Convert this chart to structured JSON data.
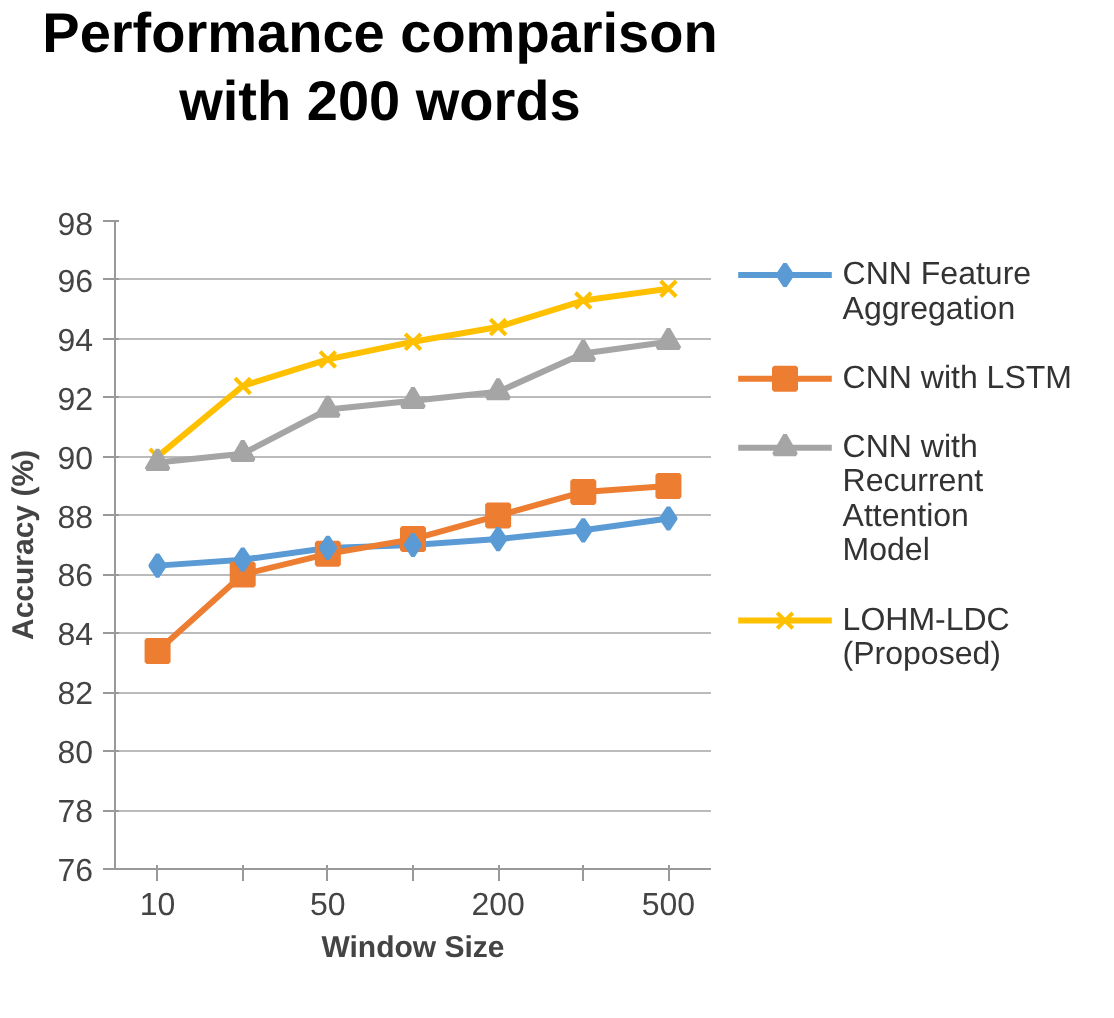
{
  "chart_data": {
    "type": "line",
    "title": "Performance comparison with 200 words",
    "xlabel": "Window Size",
    "ylabel": "Accuracy (%)",
    "categories": [
      "10",
      null,
      "50",
      null,
      "200",
      null,
      "500"
    ],
    "series": [
      {
        "name": "CNN Feature Aggregation",
        "color": "#5b9bd5",
        "marker": "diamond",
        "values": [
          86.3,
          86.5,
          86.9,
          87.0,
          87.2,
          87.5,
          87.9
        ]
      },
      {
        "name": "CNN with LSTM",
        "color": "#ed7d31",
        "marker": "square",
        "values": [
          83.4,
          86.0,
          86.7,
          87.2,
          88.0,
          88.8,
          89.0
        ]
      },
      {
        "name": "CNN with Recurrent Attention Model",
        "color": "#a5a5a5",
        "marker": "triangle",
        "values": [
          89.8,
          90.1,
          91.6,
          91.9,
          92.2,
          93.5,
          93.9
        ]
      },
      {
        "name": "LOHM-LDC (Proposed)",
        "color": "#ffc000",
        "marker": "cross",
        "values": [
          90.0,
          92.4,
          93.3,
          93.9,
          94.4,
          95.3,
          95.7
        ]
      }
    ],
    "ylim": [
      76,
      98
    ],
    "yticks": [
      76,
      78,
      80,
      82,
      84,
      86,
      88,
      90,
      92,
      94,
      96,
      98
    ],
    "grid": "y",
    "legend": "right"
  }
}
